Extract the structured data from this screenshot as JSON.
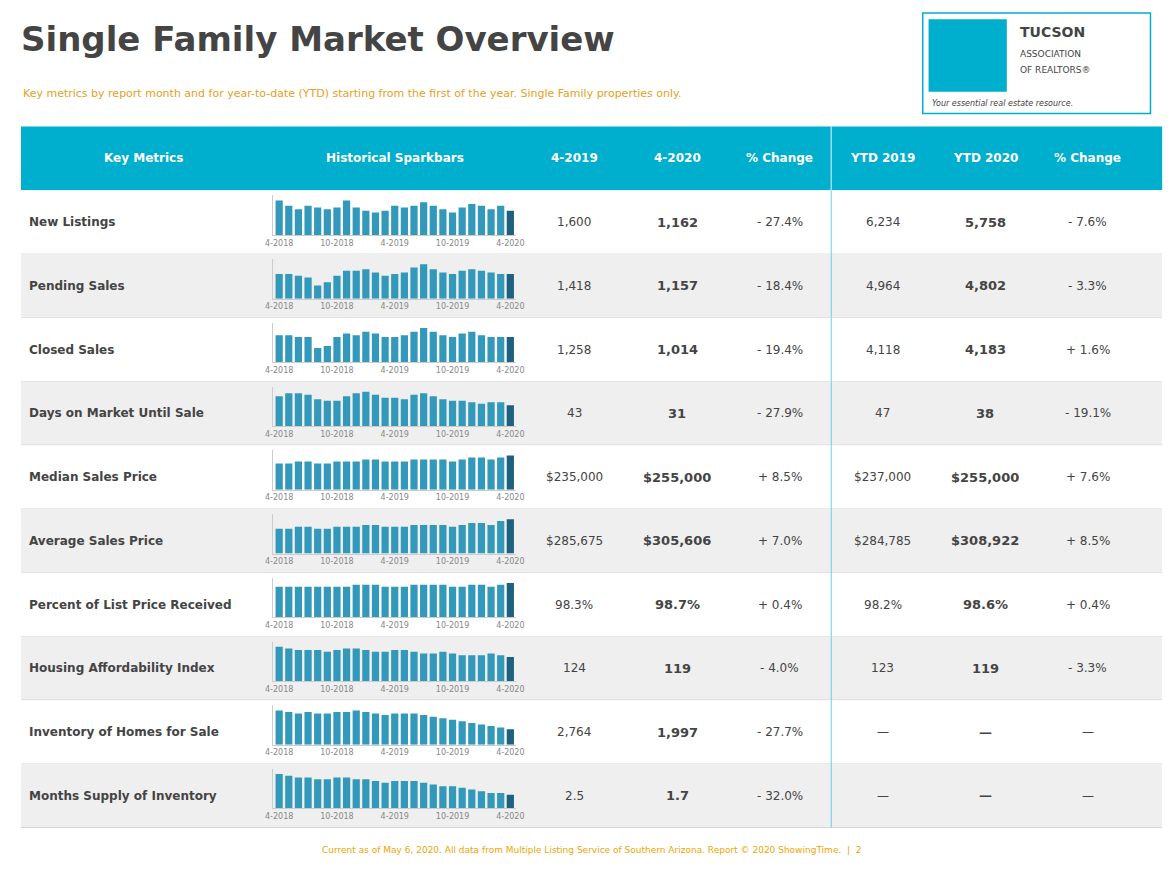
{
  "chart_data": [
    {
      "type": "table",
      "title": "Single Family Market Overview",
      "subtitle": "Key metrics by report month and for year-to-date (YTD) starting from the first of the year. Single Family properties only.",
      "subtitle_color": "#E8A020",
      "annotations": [
        "TUCSON",
        "ASSOCIATION",
        "OF REALTORS®",
        "Your essential real estate resource."
      ],
      "header_color": "#00AECD",
      "header_text_color": "#FFFFFF",
      "row_colors": [
        "#FFFFFF",
        "#EFEFEF"
      ],
      "separator_color": "#6ECFDF",
      "columns": [
        "Key Metrics",
        "Historical Sparkbars",
        "4-2019",
        "4-2020",
        "% Change",
        "YTD 2019",
        "YTD 2020",
        "% Change"
      ],
      "rows": [
        [
          "New Listings",
          "1,600",
          "1,162",
          "- 27.4%",
          "6,234",
          "5,758",
          "- 7.6%"
        ],
        [
          "Pending Sales",
          "1,418",
          "1,157",
          "- 18.4%",
          "4,964",
          "4,802",
          "- 3.3%"
        ],
        [
          "Closed Sales",
          "1,258",
          "1,014",
          "- 19.4%",
          "4,118",
          "4,183",
          "+ 1.6%"
        ],
        [
          "Days on Market Until Sale",
          "43",
          "31",
          "- 27.9%",
          "47",
          "38",
          "- 19.1%"
        ],
        [
          "Median Sales Price",
          "$235,000",
          "$255,000",
          "+ 8.5%",
          "$237,000",
          "$255,000",
          "+ 7.6%"
        ],
        [
          "Average Sales Price",
          "$285,675",
          "$305,606",
          "+ 7.0%",
          "$284,785",
          "$308,922",
          "+ 8.5%"
        ],
        [
          "Percent of List Price Received",
          "98.3%",
          "98.7%",
          "+ 0.4%",
          "98.2%",
          "98.6%",
          "+ 0.4%"
        ],
        [
          "Housing Affordability Index",
          "124",
          "119",
          "- 4.0%",
          "123",
          "119",
          "- 3.3%"
        ],
        [
          "Inventory of Homes for Sale",
          "2,764",
          "1,997",
          "- 27.7%",
          "—",
          "—",
          "—"
        ],
        [
          "Months Supply of Inventory",
          "2.5",
          "1.7",
          "- 32.0%",
          "—",
          "—",
          "—"
        ]
      ],
      "footer": "Current as of May 6, 2020. All data from Multiple Listing Service of Southern Arizona. Report © 2020 ShowingTime.  |  2",
      "footer_color": "#F0A500"
    },
    {
      "type": "bar",
      "tick_labels": "x",
      "tick_color": "#888888",
      "categories": [
        "4-2018",
        null,
        null,
        null,
        null,
        null,
        "10-2018",
        null,
        null,
        null,
        null,
        null,
        "4-2019",
        null,
        null,
        null,
        null,
        null,
        "10-2019",
        null,
        null,
        null,
        null,
        null,
        "4-2020"
      ],
      "values": [
        20,
        17,
        15,
        17,
        16,
        15,
        16,
        20,
        16,
        14,
        13,
        14,
        17,
        16,
        17,
        19,
        17,
        15,
        13,
        16,
        18,
        17,
        15,
        17,
        14
      ],
      "colors": [
        "#3399BB",
        "#3399BB",
        "#3399BB",
        "#3399BB",
        "#3399BB",
        "#3399BB",
        "#3399BB",
        "#3399BB",
        "#3399BB",
        "#3399BB",
        "#3399BB",
        "#3399BB",
        "#3399BB",
        "#3399BB",
        "#3399BB",
        "#3399BB",
        "#3399BB",
        "#3399BB",
        "#3399BB",
        "#3399BB",
        "#3399BB",
        "#3399BB",
        "#3399BB",
        "#3399BB",
        "#1E6080"
      ],
      "ylim": [
        0,
        23
      ]
    },
    {
      "type": "bar",
      "tick_labels": "x",
      "tick_color": "#888888",
      "categories": [
        "4-2018",
        null,
        null,
        null,
        null,
        null,
        "10-2018",
        null,
        null,
        null,
        null,
        null,
        "4-2019",
        null,
        null,
        null,
        null,
        null,
        "10-2019",
        null,
        null,
        null,
        null,
        null,
        "4-2020"
      ],
      "values": [
        15,
        15,
        14,
        13,
        8,
        10,
        14,
        17,
        17,
        18,
        16,
        14,
        15,
        16,
        19,
        21,
        18,
        16,
        15,
        17,
        18,
        17,
        16,
        15,
        15
      ],
      "colors": [
        "#3399BB",
        "#3399BB",
        "#3399BB",
        "#3399BB",
        "#3399BB",
        "#3399BB",
        "#3399BB",
        "#3399BB",
        "#3399BB",
        "#3399BB",
        "#3399BB",
        "#3399BB",
        "#3399BB",
        "#3399BB",
        "#3399BB",
        "#3399BB",
        "#3399BB",
        "#3399BB",
        "#3399BB",
        "#3399BB",
        "#3399BB",
        "#3399BB",
        "#3399BB",
        "#3399BB",
        "#1E6080"
      ],
      "ylim": [
        0,
        24.15
      ]
    },
    {
      "type": "bar",
      "tick_labels": "x",
      "tick_color": "#888888",
      "categories": [
        "4-2018",
        null,
        null,
        null,
        null,
        null,
        "10-2018",
        null,
        null,
        null,
        null,
        null,
        "4-2019",
        null,
        null,
        null,
        null,
        null,
        "10-2019",
        null,
        null,
        null,
        null,
        null,
        "4-2020"
      ],
      "values": [
        15,
        15,
        14,
        14,
        8,
        9,
        14,
        16,
        15,
        17,
        16,
        14,
        14,
        15,
        17,
        19,
        17,
        15,
        14,
        16,
        17,
        15,
        14,
        14,
        14
      ],
      "colors": [
        "#3399BB",
        "#3399BB",
        "#3399BB",
        "#3399BB",
        "#3399BB",
        "#3399BB",
        "#3399BB",
        "#3399BB",
        "#3399BB",
        "#3399BB",
        "#3399BB",
        "#3399BB",
        "#3399BB",
        "#3399BB",
        "#3399BB",
        "#3399BB",
        "#3399BB",
        "#3399BB",
        "#3399BB",
        "#3399BB",
        "#3399BB",
        "#3399BB",
        "#3399BB",
        "#3399BB",
        "#1E6080"
      ],
      "ylim": [
        0,
        21.85
      ]
    },
    {
      "type": "bar",
      "tick_labels": "x",
      "tick_color": "#888888",
      "categories": [
        "4-2018",
        null,
        null,
        null,
        null,
        null,
        "10-2018",
        null,
        null,
        null,
        null,
        null,
        "4-2019",
        null,
        null,
        null,
        null,
        null,
        "10-2019",
        null,
        null,
        null,
        null,
        null,
        "4-2020"
      ],
      "values": [
        20,
        22,
        22,
        21,
        18,
        17,
        17,
        20,
        22,
        23,
        21,
        19,
        19,
        18,
        21,
        22,
        20,
        18,
        17,
        17,
        16,
        15,
        16,
        16,
        14
      ],
      "colors": [
        "#3399BB",
        "#3399BB",
        "#3399BB",
        "#3399BB",
        "#3399BB",
        "#3399BB",
        "#3399BB",
        "#3399BB",
        "#3399BB",
        "#3399BB",
        "#3399BB",
        "#3399BB",
        "#3399BB",
        "#3399BB",
        "#3399BB",
        "#3399BB",
        "#3399BB",
        "#3399BB",
        "#3399BB",
        "#3399BB",
        "#3399BB",
        "#3399BB",
        "#3399BB",
        "#3399BB",
        "#1E6080"
      ],
      "ylim": [
        0,
        26.45
      ]
    },
    {
      "type": "bar",
      "tick_labels": "x",
      "tick_color": "#888888",
      "categories": [
        "4-2018",
        null,
        null,
        null,
        null,
        null,
        "10-2018",
        null,
        null,
        null,
        null,
        null,
        "4-2019",
        null,
        null,
        null,
        null,
        null,
        "10-2019",
        null,
        null,
        null,
        null,
        null,
        "4-2020"
      ],
      "values": [
        13,
        13,
        14,
        14,
        13,
        13,
        14,
        14,
        14,
        15,
        15,
        14,
        14,
        14,
        15,
        15,
        15,
        15,
        14,
        15,
        16,
        16,
        15,
        16,
        17
      ],
      "colors": [
        "#3399BB",
        "#3399BB",
        "#3399BB",
        "#3399BB",
        "#3399BB",
        "#3399BB",
        "#3399BB",
        "#3399BB",
        "#3399BB",
        "#3399BB",
        "#3399BB",
        "#3399BB",
        "#3399BB",
        "#3399BB",
        "#3399BB",
        "#3399BB",
        "#3399BB",
        "#3399BB",
        "#3399BB",
        "#3399BB",
        "#3399BB",
        "#3399BB",
        "#3399BB",
        "#3399BB",
        "#1E6080"
      ],
      "ylim": [
        0,
        19.55
      ]
    },
    {
      "type": "bar",
      "tick_labels": "x",
      "tick_color": "#888888",
      "categories": [
        "4-2018",
        null,
        null,
        null,
        null,
        null,
        "10-2018",
        null,
        null,
        null,
        null,
        null,
        "4-2019",
        null,
        null,
        null,
        null,
        null,
        "10-2019",
        null,
        null,
        null,
        null,
        null,
        "4-2020"
      ],
      "values": [
        13,
        13,
        14,
        14,
        13,
        13,
        14,
        14,
        14,
        15,
        15,
        14,
        14,
        14,
        15,
        15,
        15,
        15,
        14,
        15,
        16,
        16,
        15,
        17,
        18
      ],
      "colors": [
        "#3399BB",
        "#3399BB",
        "#3399BB",
        "#3399BB",
        "#3399BB",
        "#3399BB",
        "#3399BB",
        "#3399BB",
        "#3399BB",
        "#3399BB",
        "#3399BB",
        "#3399BB",
        "#3399BB",
        "#3399BB",
        "#3399BB",
        "#3399BB",
        "#3399BB",
        "#3399BB",
        "#3399BB",
        "#3399BB",
        "#3399BB",
        "#3399BB",
        "#3399BB",
        "#3399BB",
        "#1E6080"
      ],
      "ylim": [
        0,
        20.7
      ]
    },
    {
      "type": "bar",
      "tick_labels": "x",
      "tick_color": "#888888",
      "categories": [
        "4-2018",
        null,
        null,
        null,
        null,
        null,
        "10-2018",
        null,
        null,
        null,
        null,
        null,
        "4-2019",
        null,
        null,
        null,
        null,
        null,
        "10-2019",
        null,
        null,
        null,
        null,
        null,
        "4-2020"
      ],
      "values": [
        16,
        16,
        16,
        16,
        16,
        16,
        16,
        16,
        17,
        17,
        17,
        16,
        16,
        16,
        17,
        17,
        17,
        17,
        16,
        16,
        17,
        17,
        16,
        17,
        18
      ],
      "colors": [
        "#3399BB",
        "#3399BB",
        "#3399BB",
        "#3399BB",
        "#3399BB",
        "#3399BB",
        "#3399BB",
        "#3399BB",
        "#3399BB",
        "#3399BB",
        "#3399BB",
        "#3399BB",
        "#3399BB",
        "#3399BB",
        "#3399BB",
        "#3399BB",
        "#3399BB",
        "#3399BB",
        "#3399BB",
        "#3399BB",
        "#3399BB",
        "#3399BB",
        "#3399BB",
        "#3399BB",
        "#1E6080"
      ],
      "ylim": [
        0,
        20.7
      ]
    },
    {
      "type": "bar",
      "tick_labels": "x",
      "tick_color": "#888888",
      "categories": [
        "4-2018",
        null,
        null,
        null,
        null,
        null,
        "10-2018",
        null,
        null,
        null,
        null,
        null,
        "4-2019",
        null,
        null,
        null,
        null,
        null,
        "10-2019",
        null,
        null,
        null,
        null,
        null,
        "4-2020"
      ],
      "values": [
        20,
        19,
        18,
        18,
        18,
        17,
        18,
        19,
        19,
        18,
        17,
        17,
        18,
        18,
        17,
        16,
        16,
        17,
        16,
        15,
        15,
        15,
        16,
        15,
        14
      ],
      "colors": [
        "#3399BB",
        "#3399BB",
        "#3399BB",
        "#3399BB",
        "#3399BB",
        "#3399BB",
        "#3399BB",
        "#3399BB",
        "#3399BB",
        "#3399BB",
        "#3399BB",
        "#3399BB",
        "#3399BB",
        "#3399BB",
        "#3399BB",
        "#3399BB",
        "#3399BB",
        "#3399BB",
        "#3399BB",
        "#3399BB",
        "#3399BB",
        "#3399BB",
        "#3399BB",
        "#3399BB",
        "#1E6080"
      ],
      "ylim": [
        0,
        23
      ]
    },
    {
      "type": "bar",
      "tick_labels": "x",
      "tick_color": "#888888",
      "categories": [
        "4-2018",
        null,
        null,
        null,
        null,
        null,
        "10-2018",
        null,
        null,
        null,
        null,
        null,
        "4-2019",
        null,
        null,
        null,
        null,
        null,
        "10-2019",
        null,
        null,
        null,
        null,
        null,
        "4-2020"
      ],
      "values": [
        22,
        21,
        20,
        21,
        20,
        20,
        21,
        21,
        22,
        21,
        20,
        19,
        20,
        20,
        20,
        19,
        18,
        17,
        16,
        15,
        14,
        13,
        12,
        11,
        10
      ],
      "colors": [
        "#3399BB",
        "#3399BB",
        "#3399BB",
        "#3399BB",
        "#3399BB",
        "#3399BB",
        "#3399BB",
        "#3399BB",
        "#3399BB",
        "#3399BB",
        "#3399BB",
        "#3399BB",
        "#3399BB",
        "#3399BB",
        "#3399BB",
        "#3399BB",
        "#3399BB",
        "#3399BB",
        "#3399BB",
        "#3399BB",
        "#3399BB",
        "#3399BB",
        "#3399BB",
        "#3399BB",
        "#1E6080"
      ],
      "ylim": [
        0,
        25.3
      ]
    },
    {
      "type": "bar",
      "tick_labels": "x",
      "tick_color": "#888888",
      "categories": [
        "4-2018",
        null,
        null,
        null,
        null,
        null,
        "10-2018",
        null,
        null,
        null,
        null,
        null,
        "4-2019",
        null,
        null,
        null,
        null,
        null,
        "10-2019",
        null,
        null,
        null,
        null,
        null,
        "4-2020"
      ],
      "values": [
        20,
        19,
        18,
        18,
        17,
        17,
        18,
        18,
        17,
        17,
        16,
        15,
        16,
        16,
        16,
        15,
        14,
        13,
        13,
        12,
        11,
        10,
        9,
        9,
        8
      ],
      "colors": [
        "#3399BB",
        "#3399BB",
        "#3399BB",
        "#3399BB",
        "#3399BB",
        "#3399BB",
        "#3399BB",
        "#3399BB",
        "#3399BB",
        "#3399BB",
        "#3399BB",
        "#3399BB",
        "#3399BB",
        "#3399BB",
        "#3399BB",
        "#3399BB",
        "#3399BB",
        "#3399BB",
        "#3399BB",
        "#3399BB",
        "#3399BB",
        "#3399BB",
        "#3399BB",
        "#3399BB",
        "#1E6080"
      ],
      "ylim": [
        0,
        23
      ]
    }
  ]
}
